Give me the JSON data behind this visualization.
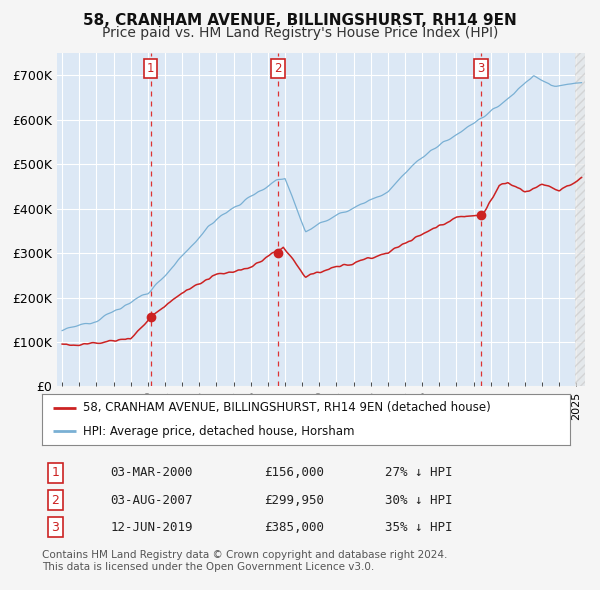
{
  "title": "58, CRANHAM AVENUE, BILLINGSHURST, RH14 9EN",
  "subtitle": "Price paid vs. HM Land Registry's House Price Index (HPI)",
  "ylim": [
    0,
    750000
  ],
  "yticks": [
    0,
    100000,
    200000,
    300000,
    400000,
    500000,
    600000,
    700000
  ],
  "ytick_labels": [
    "£0",
    "£100K",
    "£200K",
    "£300K",
    "£400K",
    "£500K",
    "£600K",
    "£700K"
  ],
  "fig_bg_color": "#f5f5f5",
  "plot_bg_color": "#dce8f5",
  "grid_color": "#ffffff",
  "hpi_color": "#7ab0d4",
  "price_color": "#cc2222",
  "transactions": [
    {
      "label": "1",
      "date_x": 2000.17,
      "price": 156000,
      "pct": "27%",
      "date_str": "03-MAR-2000"
    },
    {
      "label": "2",
      "date_x": 2007.59,
      "price": 299950,
      "pct": "30%",
      "date_str": "03-AUG-2007"
    },
    {
      "label": "3",
      "date_x": 2019.44,
      "price": 385000,
      "pct": "35%",
      "date_str": "12-JUN-2019"
    }
  ],
  "legend_entries": [
    "58, CRANHAM AVENUE, BILLINGSHURST, RH14 9EN (detached house)",
    "HPI: Average price, detached house, Horsham"
  ],
  "footer_lines": [
    "Contains HM Land Registry data © Crown copyright and database right 2024.",
    "This data is licensed under the Open Government Licence v3.0."
  ],
  "title_fontsize": 11,
  "subtitle_fontsize": 10,
  "tick_fontsize": 9,
  "xlim_start": 1994.7,
  "xlim_end": 2025.5
}
